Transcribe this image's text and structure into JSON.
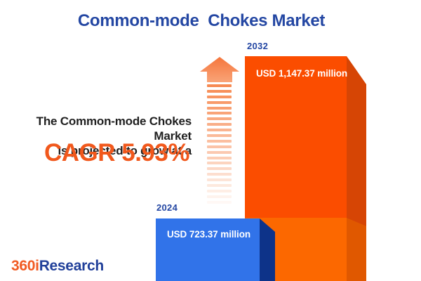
{
  "title": "Common-mode  Chokes Market",
  "tagline": {
    "line1": "The Common-mode Chokes Market",
    "line2": "is projected to grow at a"
  },
  "cagr": {
    "text": "CAGR 5.93%"
  },
  "chart_data": {
    "type": "bar",
    "title": "Common-mode Chokes Market",
    "categories": [
      "2024",
      "2032"
    ],
    "values": [
      723.37,
      1147.37
    ],
    "unit": "USD million",
    "cagr_percent": 5.93,
    "legend_position": "none",
    "grid": false,
    "bars": [
      {
        "year": "2024",
        "value": 723.37,
        "value_label": "USD 723.37 million",
        "front_color": "#3173E9",
        "side_color": "#0D3389"
      },
      {
        "year": "2032",
        "value": 1147.37,
        "value_label": "USD 1,147.37 million",
        "front_color": "#FB4D00",
        "side_color": "#D64505",
        "baseline_front_color": "#FC6800",
        "baseline_side_color": "#E05800"
      }
    ]
  },
  "arrow": {
    "meaning": "growth-up-arrow",
    "color": "#F5753B"
  },
  "logo": {
    "part1": "360i",
    "part2": "Research"
  },
  "colors": {
    "title_blue": "#2447A3",
    "cagr_orange": "#F1581C",
    "body_text": "#1F1F1F",
    "logo_orange": "#F15A22",
    "logo_blue": "#21409A",
    "background": "#FFFFFF"
  }
}
